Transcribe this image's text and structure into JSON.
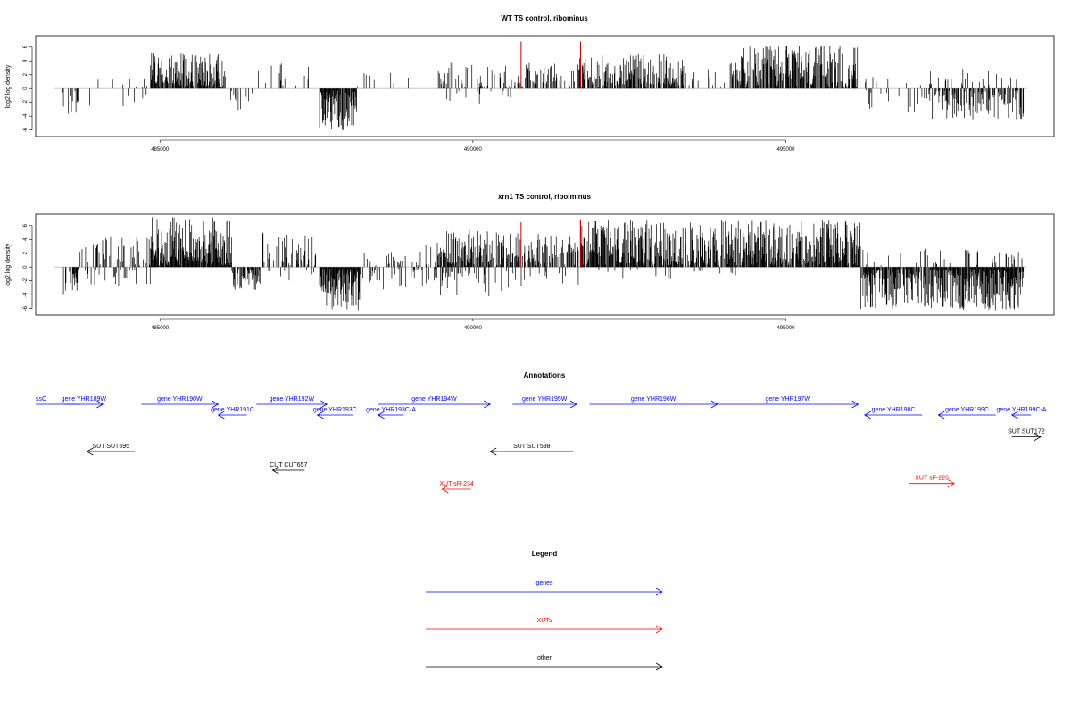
{
  "chart_data": [
    {
      "type": "bar",
      "title": "WT TS control, ribominus",
      "ylabel": "log2 log density",
      "xlabel": "",
      "xlim": [
        483300,
        499000
      ],
      "ylim": [
        -6.3,
        7
      ],
      "xticks": [
        485000,
        490000,
        495000
      ],
      "yticks": [
        -6,
        -4,
        -2,
        0,
        2,
        4,
        6
      ],
      "grid": false,
      "baseline_color": "#bebebe",
      "bar_color": "#000000",
      "highlight_color": "#cc0000",
      "highlights": [
        {
          "x": 490770,
          "y": 6.8
        },
        {
          "x": 491720,
          "y": 6.8
        }
      ],
      "regions": [
        {
          "from": 483450,
          "to": 483700,
          "sign": -1,
          "amp": 3.8,
          "dens": 0.3
        },
        {
          "from": 483700,
          "to": 484850,
          "sign": -1,
          "amp": 2.5,
          "dens": 0.05
        },
        {
          "from": 483700,
          "to": 484850,
          "sign": 1,
          "amp": 1.2,
          "dens": 0.04
        },
        {
          "from": 484850,
          "to": 486050,
          "sign": 1,
          "amp": 5.0,
          "dens": 0.85
        },
        {
          "from": 486050,
          "to": 486500,
          "sign": -1,
          "amp": 3.2,
          "dens": 0.15
        },
        {
          "from": 486500,
          "to": 487450,
          "sign": 1,
          "amp": 3.8,
          "dens": 0.12
        },
        {
          "from": 487550,
          "to": 488150,
          "sign": -1,
          "amp": 5.8,
          "dens": 0.95
        },
        {
          "from": 488150,
          "to": 489400,
          "sign": 1,
          "amp": 2.2,
          "dens": 0.04
        },
        {
          "from": 489400,
          "to": 490700,
          "sign": 1,
          "amp": 3.5,
          "dens": 0.28
        },
        {
          "from": 489400,
          "to": 490700,
          "sign": -1,
          "amp": 2.4,
          "dens": 0.05
        },
        {
          "from": 490700,
          "to": 491700,
          "sign": 1,
          "amp": 3.5,
          "dens": 0.3
        },
        {
          "from": 491700,
          "to": 493350,
          "sign": 1,
          "amp": 4.8,
          "dens": 0.7
        },
        {
          "from": 493350,
          "to": 494200,
          "sign": 1,
          "amp": 3.5,
          "dens": 0.25
        },
        {
          "from": 494200,
          "to": 496150,
          "sign": 1,
          "amp": 6.0,
          "dens": 0.75
        },
        {
          "from": 496150,
          "to": 497300,
          "sign": -1,
          "amp": 3.5,
          "dens": 0.12
        },
        {
          "from": 496150,
          "to": 497300,
          "sign": 1,
          "amp": 1.5,
          "dens": 0.05
        },
        {
          "from": 497300,
          "to": 498800,
          "sign": -1,
          "amp": 4.2,
          "dens": 0.55
        },
        {
          "from": 497300,
          "to": 498800,
          "sign": 1,
          "amp": 2.7,
          "dens": 0.12
        }
      ]
    },
    {
      "type": "bar",
      "title": "xrn1 TS control, riboiminus",
      "ylabel": "log2 log density",
      "xlabel": "",
      "xlim": [
        483300,
        499000
      ],
      "ylim": [
        -6.3,
        7
      ],
      "xticks": [
        485000,
        490000,
        495000
      ],
      "yticks": [
        -6,
        -4,
        -2,
        0,
        2,
        4,
        6
      ],
      "grid": false,
      "baseline_color": "#bebebe",
      "bar_color": "#000000",
      "highlight_color": "#cc0000",
      "highlights": [
        {
          "x": 490770,
          "y": 6.5
        },
        {
          "x": 491720,
          "y": 6.8
        }
      ],
      "regions": [
        {
          "from": 483450,
          "to": 483700,
          "sign": -1,
          "amp": 5.0,
          "dens": 0.5
        },
        {
          "from": 483700,
          "to": 484850,
          "sign": 1,
          "amp": 4.2,
          "dens": 0.25
        },
        {
          "from": 483700,
          "to": 484850,
          "sign": -1,
          "amp": 2.5,
          "dens": 0.15
        },
        {
          "from": 484850,
          "to": 486150,
          "sign": 1,
          "amp": 7.0,
          "dens": 0.95
        },
        {
          "from": 486150,
          "to": 486600,
          "sign": -1,
          "amp": 3.5,
          "dens": 0.6
        },
        {
          "from": 486600,
          "to": 487500,
          "sign": 1,
          "amp": 5.0,
          "dens": 0.35
        },
        {
          "from": 486600,
          "to": 487500,
          "sign": -1,
          "amp": 2.0,
          "dens": 0.1
        },
        {
          "from": 487550,
          "to": 488200,
          "sign": -1,
          "amp": 6.0,
          "dens": 0.98
        },
        {
          "from": 488200,
          "to": 489400,
          "sign": -1,
          "amp": 3.0,
          "dens": 0.2
        },
        {
          "from": 488200,
          "to": 489400,
          "sign": 1,
          "amp": 3.0,
          "dens": 0.15
        },
        {
          "from": 489400,
          "to": 490700,
          "sign": 1,
          "amp": 5.2,
          "dens": 0.7
        },
        {
          "from": 489400,
          "to": 490700,
          "sign": -1,
          "amp": 4.0,
          "dens": 0.2
        },
        {
          "from": 490700,
          "to": 491700,
          "sign": 1,
          "amp": 4.8,
          "dens": 0.55
        },
        {
          "from": 490700,
          "to": 491700,
          "sign": -1,
          "amp": 2.5,
          "dens": 0.15
        },
        {
          "from": 491700,
          "to": 494200,
          "sign": 1,
          "amp": 6.5,
          "dens": 0.85
        },
        {
          "from": 491700,
          "to": 494200,
          "sign": -1,
          "amp": 1.5,
          "dens": 0.05
        },
        {
          "from": 494200,
          "to": 496200,
          "sign": 1,
          "amp": 6.5,
          "dens": 0.85
        },
        {
          "from": 496200,
          "to": 497300,
          "sign": -1,
          "amp": 5.8,
          "dens": 0.8
        },
        {
          "from": 496200,
          "to": 497300,
          "sign": 1,
          "amp": 2.5,
          "dens": 0.15
        },
        {
          "from": 497300,
          "to": 498800,
          "sign": -1,
          "amp": 6.0,
          "dens": 0.95
        },
        {
          "from": 497300,
          "to": 498800,
          "sign": 1,
          "amp": 2.5,
          "dens": 0.2
        }
      ]
    }
  ],
  "annotations": {
    "title": "Annotations",
    "xlim": [
      483300,
      499000
    ],
    "features": [
      {
        "label": "ssC",
        "start": 483300,
        "end": 484000,
        "dir": "none",
        "row": 0,
        "type": "gene"
      },
      {
        "label": "gene YHR189W",
        "start": 483750,
        "end": 484350,
        "dir": "right",
        "row": 0,
        "type": "gene"
      },
      {
        "label": "gene YHR190W",
        "start": 484950,
        "end": 486150,
        "dir": "right",
        "row": 0,
        "type": "gene"
      },
      {
        "label": "gene YHR191C",
        "start": 486150,
        "end": 486600,
        "dir": "left",
        "row": 1,
        "type": "gene"
      },
      {
        "label": "gene YHR192W",
        "start": 486750,
        "end": 487850,
        "dir": "right",
        "row": 0,
        "type": "gene"
      },
      {
        "label": "gene YHR193C",
        "start": 487700,
        "end": 488250,
        "dir": "left",
        "row": 1,
        "type": "gene"
      },
      {
        "label": "gene YHR193C-A",
        "start": 488650,
        "end": 489050,
        "dir": "left",
        "row": 1,
        "type": "gene"
      },
      {
        "label": "gene YHR194W",
        "start": 488650,
        "end": 490400,
        "dir": "right",
        "row": 0,
        "type": "gene"
      },
      {
        "label": "gene YHR195W",
        "start": 490750,
        "end": 491750,
        "dir": "right",
        "row": 0,
        "type": "gene"
      },
      {
        "label": "gene YHR196W",
        "start": 491950,
        "end": 493950,
        "dir": "right",
        "row": 0,
        "type": "gene"
      },
      {
        "label": "gene YHR197W",
        "start": 493950,
        "end": 496150,
        "dir": "right",
        "row": 0,
        "type": "gene"
      },
      {
        "label": "gene YHR198C",
        "start": 496250,
        "end": 497150,
        "dir": "left",
        "row": 1,
        "type": "gene"
      },
      {
        "label": "gene YHR199C",
        "start": 497400,
        "end": 498300,
        "dir": "left",
        "row": 1,
        "type": "gene"
      },
      {
        "label": "gene YHR199C-A",
        "start": 498550,
        "end": 498850,
        "dir": "left",
        "row": 1,
        "type": "gene"
      },
      {
        "label": "SUT SUT595",
        "start": 484100,
        "end": 484850,
        "dir": "left",
        "row": 2,
        "type": "other"
      },
      {
        "label": "SUT SUT598",
        "start": 490400,
        "end": 491700,
        "dir": "left",
        "row": 2,
        "type": "other"
      },
      {
        "label": "SUT SUT172",
        "start": 498550,
        "end": 499000,
        "dir": "right",
        "row": 1.6,
        "type": "other"
      },
      {
        "label": "CUT CUT657",
        "start": 487000,
        "end": 487500,
        "dir": "left",
        "row": 3,
        "type": "other"
      },
      {
        "label": "XUT sR-234",
        "start": 489650,
        "end": 490100,
        "dir": "left",
        "row": 4,
        "type": "xut"
      },
      {
        "label": "XUT sF-226",
        "start": 496950,
        "end": 497650,
        "dir": "right",
        "row": 3.7,
        "type": "xut"
      }
    ]
  },
  "legend": {
    "title": "Legend",
    "items": [
      {
        "label": "genes",
        "color": "#0000ff"
      },
      {
        "label": "XUTs",
        "color": "#ff0000"
      },
      {
        "label": "other",
        "color": "#000000"
      }
    ]
  },
  "colors": {
    "gene": "#0000ff",
    "xut": "#ff0000",
    "other": "#000000"
  }
}
